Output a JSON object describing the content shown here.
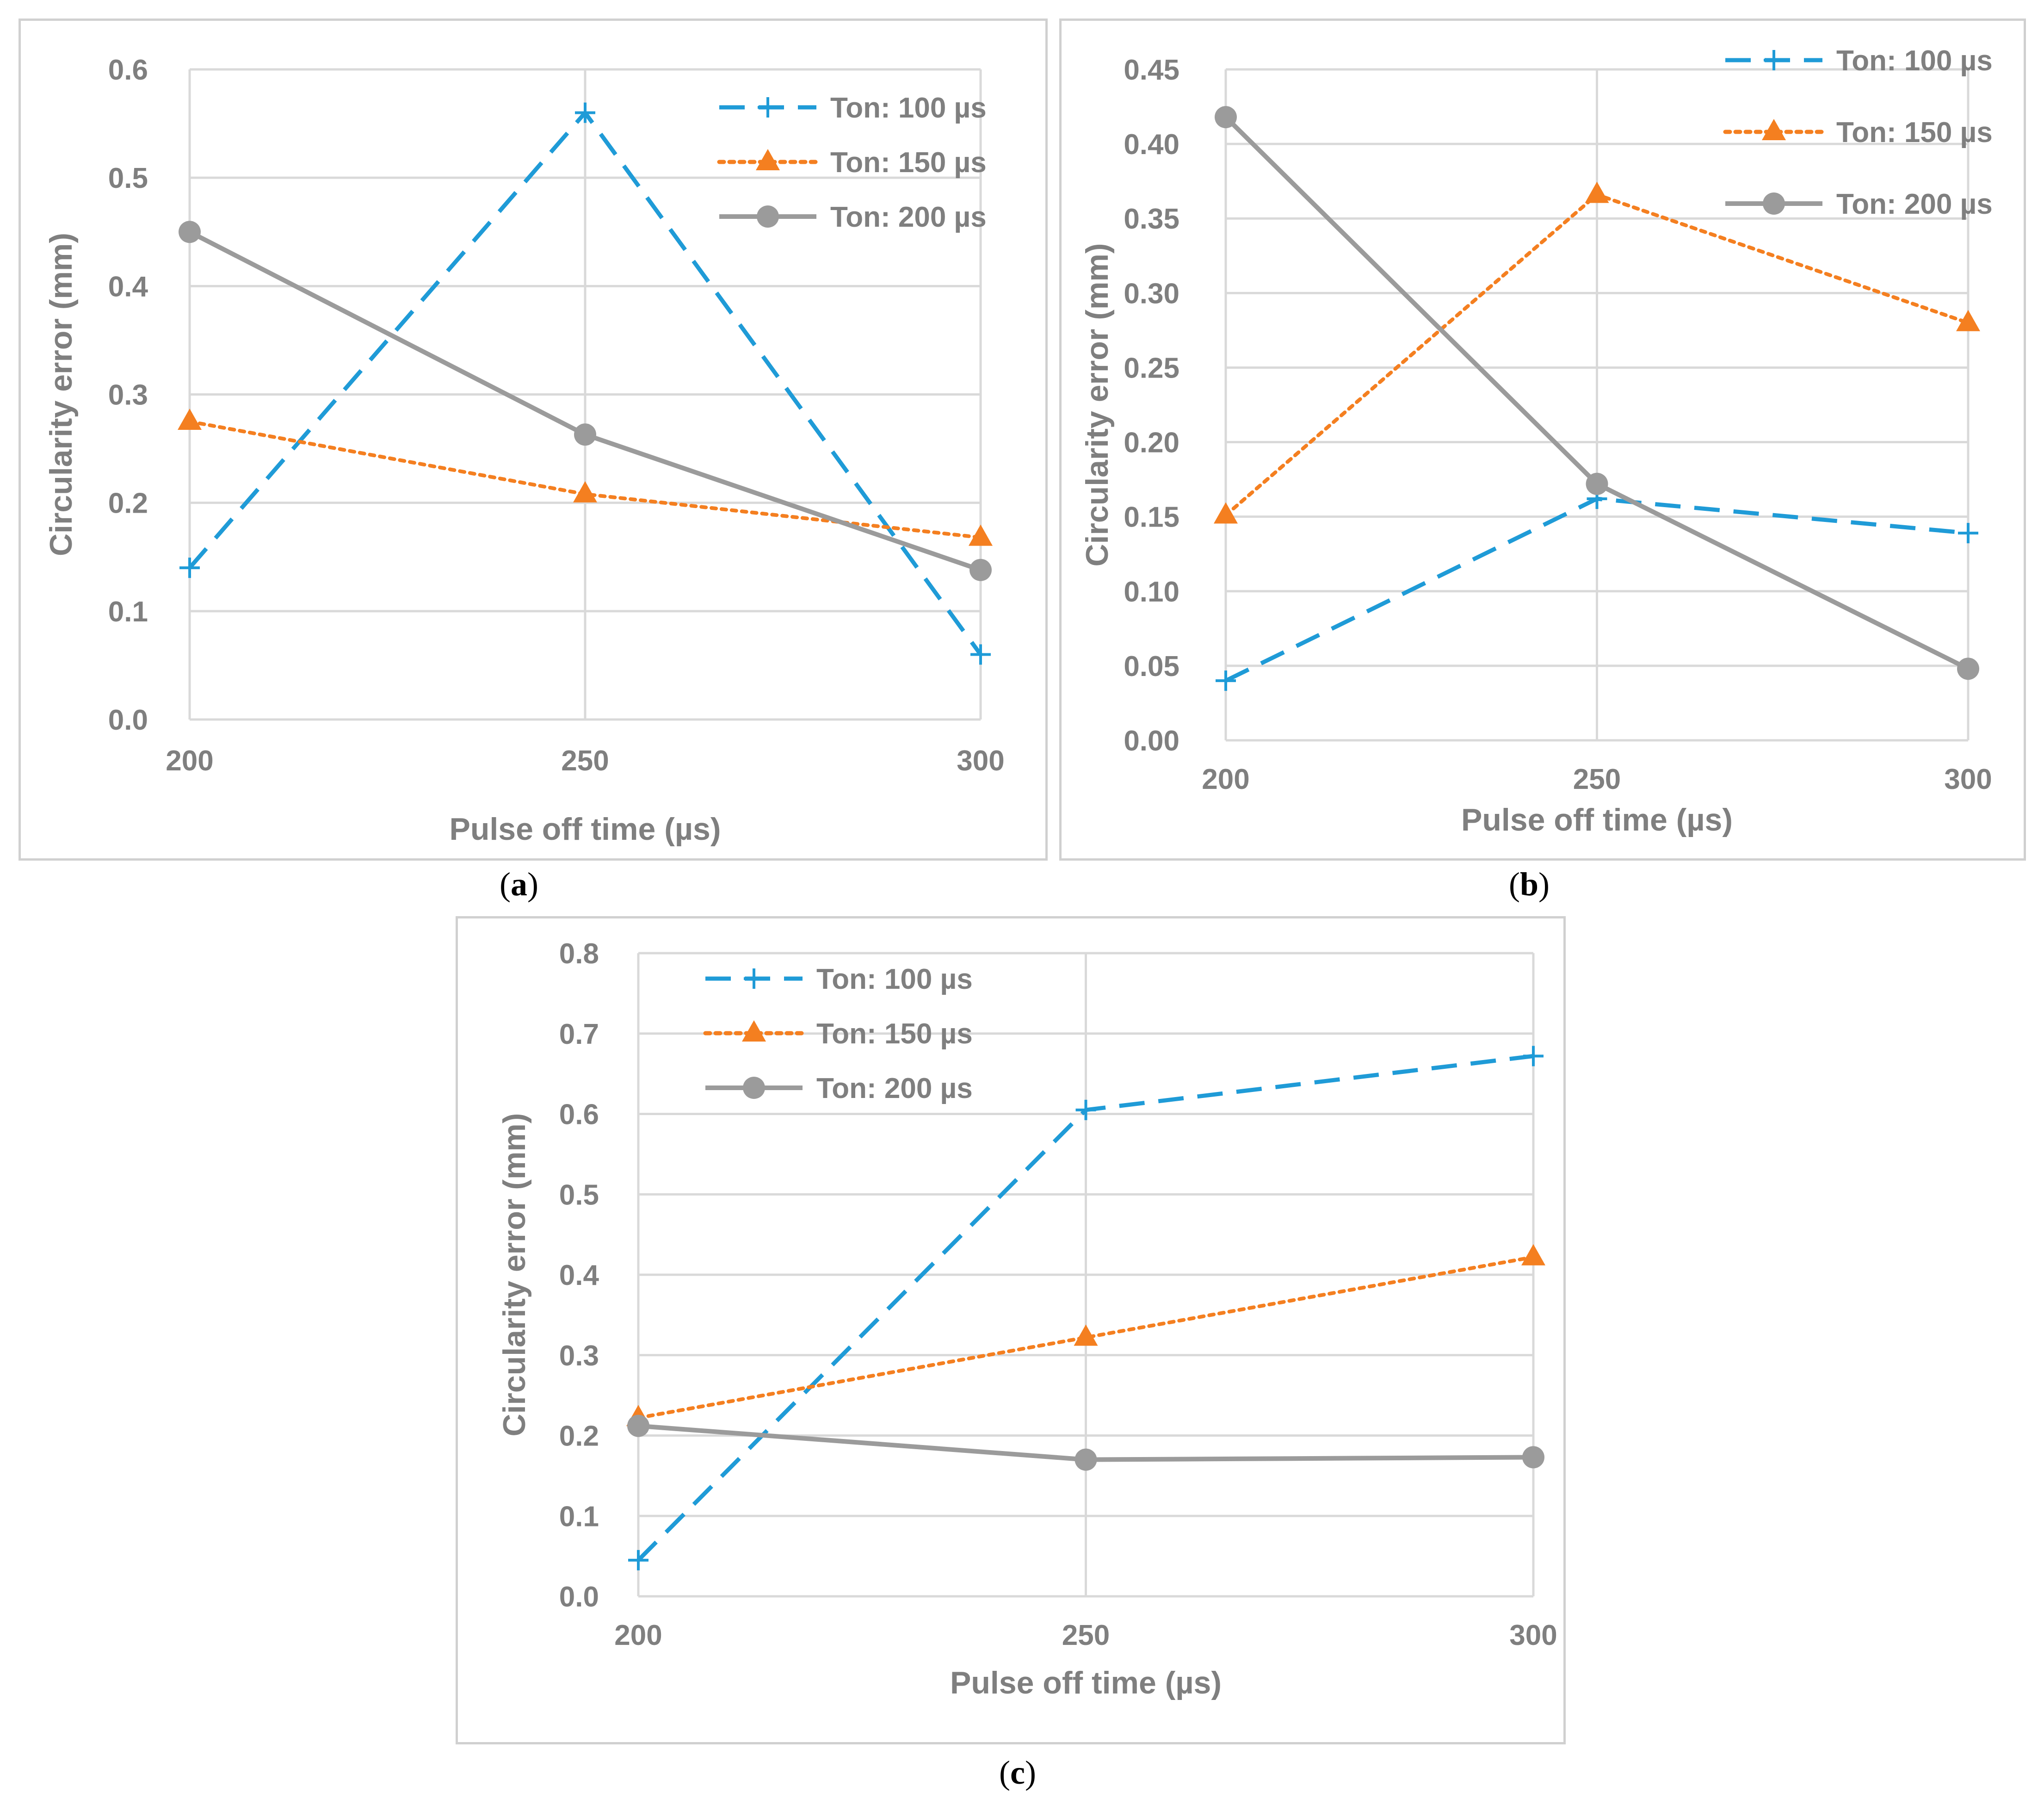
{
  "chart_data": [
    {
      "type": "line",
      "caption_letter": "a",
      "xlabel": "Pulse off time (µs)",
      "ylabel": "Circularity error (mm)",
      "x": [
        200,
        250,
        300
      ],
      "x_tick_labels": [
        "200",
        "250",
        "300"
      ],
      "ylim": [
        0,
        0.6
      ],
      "y_tick_values": [
        0,
        0.1,
        0.2,
        0.3,
        0.4,
        0.5,
        0.6
      ],
      "y_tick_labels": [
        "0.0",
        "0.1",
        "0.2",
        "0.3",
        "0.4",
        "0.5",
        "0.6"
      ],
      "grid": true,
      "legend_position": "top-right",
      "series": [
        {
          "name": "Ton: 100 µs",
          "values": [
            0.14,
            0.56,
            0.06
          ]
        },
        {
          "name": "Ton: 150 µs",
          "values": [
            0.275,
            0.208,
            0.168
          ]
        },
        {
          "name": "Ton: 200 µs",
          "values": [
            0.45,
            0.263,
            0.138
          ]
        }
      ]
    },
    {
      "type": "line",
      "caption_letter": "b",
      "xlabel": "Pulse off time (µs)",
      "ylabel": "Circularity error (mm)",
      "x": [
        200,
        250,
        300
      ],
      "x_tick_labels": [
        "200",
        "250",
        "300"
      ],
      "ylim": [
        0,
        0.45
      ],
      "y_tick_values": [
        0,
        0.05,
        0.1,
        0.15,
        0.2,
        0.25,
        0.3,
        0.35,
        0.4,
        0.45
      ],
      "y_tick_labels": [
        "0.00",
        "0.05",
        "0.10",
        "0.15",
        "0.20",
        "0.25",
        "0.30",
        "0.35",
        "0.40",
        "0.45"
      ],
      "grid": true,
      "legend_position": "top-right",
      "series": [
        {
          "name": "Ton: 100 µs",
          "values": [
            0.04,
            0.162,
            0.139
          ]
        },
        {
          "name": "Ton: 150 µs",
          "values": [
            0.151,
            0.366,
            0.28
          ]
        },
        {
          "name": "Ton: 200 µs",
          "values": [
            0.418,
            0.172,
            0.048
          ]
        }
      ]
    },
    {
      "type": "line",
      "caption_letter": "c",
      "xlabel": "Pulse off time (µs)",
      "ylabel": "Circularity error (mm)",
      "x": [
        200,
        250,
        300
      ],
      "x_tick_labels": [
        "200",
        "250",
        "300"
      ],
      "ylim": [
        0,
        0.8
      ],
      "y_tick_values": [
        0,
        0.1,
        0.2,
        0.3,
        0.4,
        0.5,
        0.6,
        0.7,
        0.8
      ],
      "y_tick_labels": [
        "0.0",
        "0.1",
        "0.2",
        "0.3",
        "0.4",
        "0.5",
        "0.6",
        "0.7",
        "0.8"
      ],
      "grid": true,
      "legend_position": "top-left",
      "series": [
        {
          "name": "Ton: 100 µs",
          "values": [
            0.045,
            0.605,
            0.672
          ]
        },
        {
          "name": "Ton: 150 µs",
          "values": [
            0.222,
            0.322,
            0.422
          ]
        },
        {
          "name": "Ton: 200 µs",
          "values": [
            0.212,
            0.17,
            0.173
          ]
        }
      ]
    }
  ],
  "series_styles": [
    {
      "color": "#1f9bd7",
      "line": "dashed",
      "marker": "plus"
    },
    {
      "color": "#f47f20",
      "line": "dotted",
      "marker": "triangle"
    },
    {
      "color": "#9b9b9b",
      "line": "solid",
      "marker": "circle"
    }
  ]
}
